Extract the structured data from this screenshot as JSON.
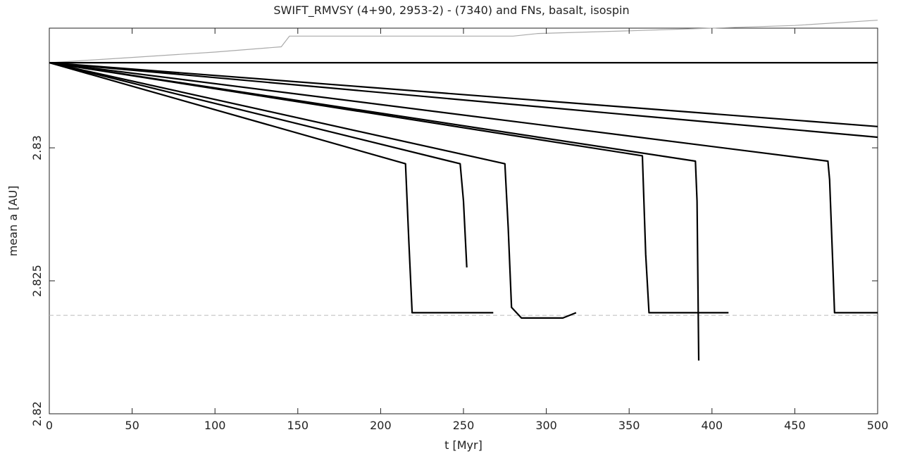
{
  "chart_data": {
    "type": "line",
    "title": "SWIFT_RMVSY (4+90, 2953-2) - (7340) and FNs, basalt, isospin",
    "xlabel": "t [Myr]",
    "ylabel": "mean a [AU]",
    "xlim": [
      0,
      500
    ],
    "ylim": [
      2.82,
      2.8345
    ],
    "x_ticks": [
      0,
      50,
      100,
      150,
      200,
      250,
      300,
      350,
      400,
      450,
      500
    ],
    "y_ticks": [
      2.82,
      2.825,
      2.83
    ],
    "x_tick_labels": [
      "0",
      "50",
      "100",
      "150",
      "200",
      "250",
      "300",
      "350",
      "400",
      "450",
      "500"
    ],
    "y_tick_labels": [
      "2.82",
      "2.825",
      "2.83"
    ],
    "grid": false,
    "reference_line": {
      "y": 2.8237,
      "style": "dashed",
      "color": "#bbbbbb"
    },
    "series": [
      {
        "color": "#aaaaaa",
        "x": [
          0,
          50,
          100,
          140,
          145,
          160,
          200,
          250,
          280,
          295,
          350,
          400,
          450,
          500
        ],
        "y": [
          2.8332,
          2.8334,
          2.8336,
          2.8338,
          2.8342,
          2.8342,
          2.8342,
          2.8342,
          2.8342,
          2.8343,
          2.8344,
          2.8345,
          2.8346,
          2.8348
        ]
      },
      {
        "color": "#000000",
        "x": [
          0,
          500
        ],
        "y": [
          2.8332,
          2.8332
        ]
      },
      {
        "color": "#000000",
        "x": [
          0,
          500
        ],
        "y": [
          2.8332,
          2.8308
        ]
      },
      {
        "color": "#000000",
        "x": [
          0,
          500
        ],
        "y": [
          2.8332,
          2.8304
        ]
      },
      {
        "color": "#000000",
        "x": [
          0,
          470,
          471,
          473,
          474,
          500
        ],
        "y": [
          2.8332,
          2.8295,
          2.8288,
          2.8255,
          2.8238,
          2.8238
        ]
      },
      {
        "color": "#000000",
        "x": [
          0,
          390,
          391,
          392
        ],
        "y": [
          2.8332,
          2.8295,
          2.828,
          2.822
        ]
      },
      {
        "color": "#000000",
        "x": [
          0,
          358,
          360,
          362,
          410
        ],
        "y": [
          2.8332,
          2.8297,
          2.826,
          2.8238,
          2.8238
        ]
      },
      {
        "color": "#000000",
        "x": [
          0,
          275,
          277,
          279,
          282,
          285,
          310,
          318
        ],
        "y": [
          2.8332,
          2.8294,
          2.827,
          2.824,
          2.8238,
          2.8236,
          2.8236,
          2.8238
        ]
      },
      {
        "color": "#000000",
        "x": [
          0,
          248,
          250,
          252
        ],
        "y": [
          2.8332,
          2.8294,
          2.828,
          2.8255
        ]
      },
      {
        "color": "#000000",
        "x": [
          0,
          215,
          217,
          219,
          268
        ],
        "y": [
          2.8332,
          2.8294,
          2.8265,
          2.8238,
          2.8238
        ]
      }
    ]
  }
}
